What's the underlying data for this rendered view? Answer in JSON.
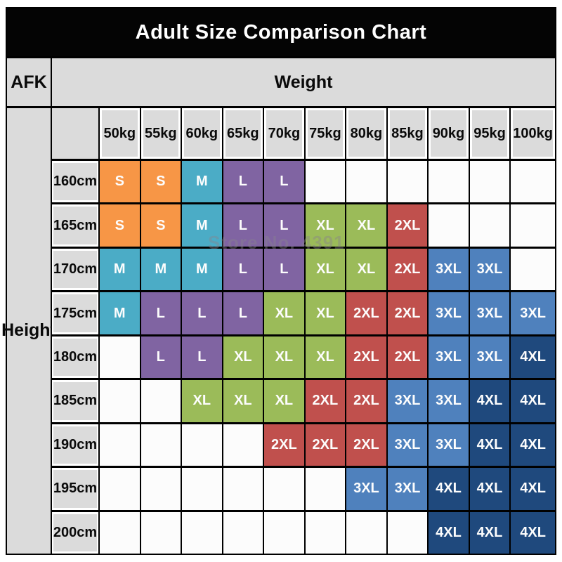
{
  "title": "Adult Size Comparison Chart",
  "corner_label": "AFK",
  "weight_header": "Weight",
  "height_header": "Height",
  "watermark_text": "Store No. 4391",
  "colors": {
    "S": "#F79646",
    "M": "#4BACC6",
    "L": "#8064A2",
    "XL": "#9BBB59",
    "2XL": "#C0504D",
    "3XL": "#4F81BD",
    "4XL": "#1F497D",
    "title_bg": "#040404",
    "header_bg": "#DBDBDB",
    "empty_cell": "#FCFCFC",
    "grid_line": "#000000"
  },
  "chart_data": {
    "type": "table",
    "title": "Adult Size Comparison Chart",
    "xlabel": "Weight",
    "ylabel": "Height",
    "columns": [
      "50kg",
      "55kg",
      "60kg",
      "65kg",
      "70kg",
      "75kg",
      "80kg",
      "85kg",
      "90kg",
      "95kg",
      "100kg"
    ],
    "rows": [
      {
        "height": "160cm",
        "sizes": [
          "S",
          "S",
          "M",
          "L",
          "L",
          "",
          "",
          "",
          "",
          "",
          ""
        ]
      },
      {
        "height": "165cm",
        "sizes": [
          "S",
          "S",
          "M",
          "L",
          "L",
          "XL",
          "XL",
          "2XL",
          "",
          "",
          ""
        ]
      },
      {
        "height": "170cm",
        "sizes": [
          "M",
          "M",
          "M",
          "L",
          "L",
          "XL",
          "XL",
          "2XL",
          "3XL",
          "3XL",
          ""
        ]
      },
      {
        "height": "175cm",
        "sizes": [
          "M",
          "L",
          "L",
          "L",
          "XL",
          "XL",
          "2XL",
          "2XL",
          "3XL",
          "3XL",
          "3XL"
        ]
      },
      {
        "height": "180cm",
        "sizes": [
          "",
          "L",
          "L",
          "XL",
          "XL",
          "XL",
          "2XL",
          "2XL",
          "3XL",
          "3XL",
          "4XL"
        ]
      },
      {
        "height": "185cm",
        "sizes": [
          "",
          "",
          "XL",
          "XL",
          "XL",
          "2XL",
          "2XL",
          "3XL",
          "3XL",
          "4XL",
          "4XL"
        ]
      },
      {
        "height": "190cm",
        "sizes": [
          "",
          "",
          "",
          "",
          "2XL",
          "2XL",
          "2XL",
          "3XL",
          "3XL",
          "4XL",
          "4XL"
        ]
      },
      {
        "height": "195cm",
        "sizes": [
          "",
          "",
          "",
          "",
          "",
          "",
          "3XL",
          "3XL",
          "4XL",
          "4XL",
          "4XL"
        ]
      },
      {
        "height": "200cm",
        "sizes": [
          "",
          "",
          "",
          "",
          "",
          "",
          "",
          "",
          "4XL",
          "4XL",
          "4XL"
        ]
      }
    ]
  }
}
